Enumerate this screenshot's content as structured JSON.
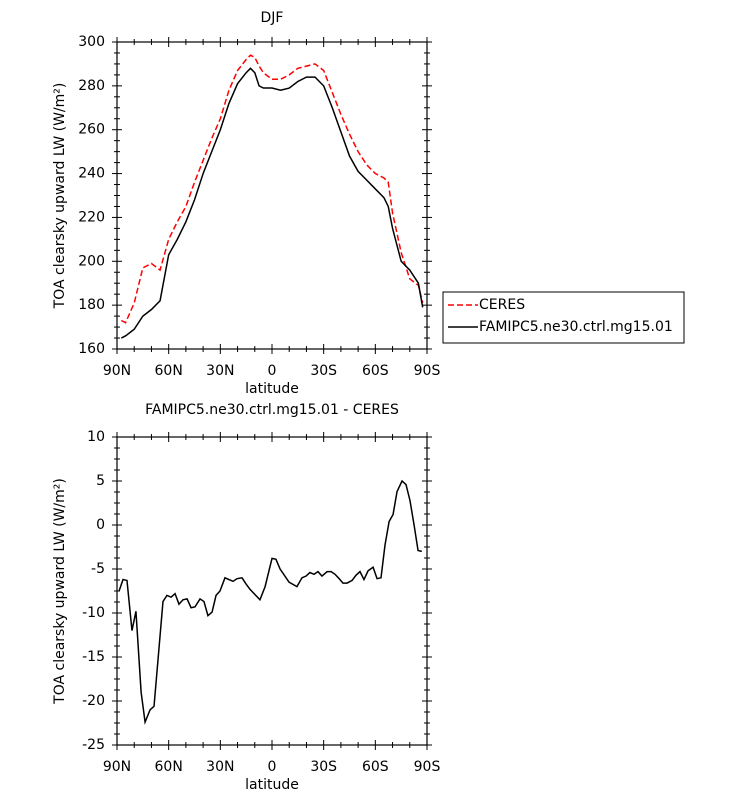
{
  "chart_data": [
    {
      "type": "line",
      "title": "DJF",
      "xlabel": "latitude",
      "ylabel": "TOA clearsky upward LW (W/m²)",
      "x": [
        87.5,
        85,
        80,
        75,
        70,
        65,
        60,
        55,
        50,
        45,
        40,
        35,
        30,
        25,
        20,
        15,
        12.5,
        10,
        7.5,
        5,
        0,
        -5,
        -10,
        -15,
        -20,
        -25,
        -30,
        -35,
        -40,
        -45,
        -50,
        -55,
        -60,
        -65,
        -67.5,
        -70,
        -75,
        -80,
        -85,
        -87.5
      ],
      "series": [
        {
          "name": "CERES",
          "color": "#ff0000",
          "dashed": true,
          "values": [
            173,
            172,
            181,
            197,
            199,
            196,
            210,
            218,
            225,
            236,
            246,
            256,
            265,
            278,
            287,
            292,
            294,
            293,
            289,
            286,
            283,
            283,
            285,
            288,
            289,
            290,
            287,
            277,
            267,
            258,
            250,
            244,
            240,
            238,
            236,
            222,
            204,
            192,
            189,
            181
          ]
        },
        {
          "name": "FAMIPC5.ne30.ctrl.mg15.01",
          "color": "#000000",
          "dashed": false,
          "values": [
            165,
            166,
            169,
            175,
            178,
            182,
            203,
            210,
            218,
            228,
            240,
            250,
            260,
            272,
            281,
            286,
            288,
            286,
            280,
            279,
            279,
            278,
            279,
            282,
            284,
            284,
            280,
            270,
            259,
            248,
            241,
            237,
            233,
            229,
            225,
            215,
            200,
            196,
            190,
            179
          ]
        }
      ],
      "xlim": [
        90,
        -90
      ],
      "xticks": [
        {
          "value": 90,
          "label": "90N"
        },
        {
          "value": 60,
          "label": "60N"
        },
        {
          "value": 30,
          "label": "30N"
        },
        0,
        {
          "value": -30,
          "label": "30S"
        },
        {
          "value": -60,
          "label": "60S"
        },
        {
          "value": -90,
          "label": "90S"
        }
      ],
      "ylim": [
        160,
        300
      ],
      "yticks": [
        160,
        180,
        200,
        220,
        240,
        260,
        280,
        300
      ],
      "legend": "right"
    },
    {
      "type": "line",
      "title": "FAMIPC5.ne30.ctrl.mg15.01 - CERES",
      "xlabel": "latitude",
      "ylabel": "TOA clearsky upward LW (W/m²)",
      "x": [
        88.8,
        86.5,
        84.2,
        81.3,
        79,
        76,
        73.7,
        70.8,
        68.5,
        63.3,
        61,
        58.6,
        56.3,
        54,
        51.7,
        49.3,
        47,
        44.7,
        41.8,
        39.5,
        37.2,
        34.8,
        32.5,
        30.2,
        27.3,
        25,
        22.6,
        20.3,
        17.4,
        15.1,
        12.8,
        10.4,
        7,
        4,
        0,
        -2.3,
        -4.7,
        -9.9,
        -14.5,
        -17.4,
        -19.8,
        -22,
        -24.4,
        -26.7,
        -29,
        -32,
        -34.3,
        -36.6,
        -39,
        -41.2,
        -43.6,
        -46.5,
        -48.8,
        -51.1,
        -53.4,
        -55.8,
        -58.7,
        -61,
        -63.3,
        -65.6,
        -68,
        -70.3,
        -72.6,
        -75.5,
        -77.8,
        -80.1,
        -82.5,
        -84.8,
        -87
      ],
      "series": [
        {
          "color": "#000000",
          "dashed": false,
          "values": [
            -7.5,
            -6.2,
            -6.3,
            -12,
            -9.8,
            -19,
            -22.4,
            -21,
            -20.6,
            -8.7,
            -8,
            -8.2,
            -7.8,
            -9,
            -8.5,
            -8.4,
            -9.4,
            -9.3,
            -8.4,
            -8.7,
            -10.3,
            -9.9,
            -8,
            -7.5,
            -6,
            -6.2,
            -6.4,
            -6.1,
            -6,
            -6.7,
            -7.3,
            -7.8,
            -8.5,
            -7,
            -3.8,
            -3.9,
            -5,
            -6.5,
            -7,
            -6,
            -5.8,
            -5.4,
            -5.6,
            -5.3,
            -5.8,
            -5.3,
            -5.3,
            -5.6,
            -6.1,
            -6.6,
            -6.6,
            -6.3,
            -5.7,
            -5.3,
            -6.2,
            -5.2,
            -4.8,
            -6.1,
            -6,
            -2.3,
            0.4,
            1.2,
            3.8,
            5,
            4.6,
            2.8,
            0,
            -2.9,
            -3
          ]
        }
      ],
      "xlim": [
        90,
        -90
      ],
      "xticks": [
        {
          "value": 90,
          "label": "90N"
        },
        {
          "value": 60,
          "label": "60N"
        },
        {
          "value": 30,
          "label": "30N"
        },
        0,
        {
          "value": -30,
          "label": "30S"
        },
        {
          "value": -60,
          "label": "60S"
        },
        {
          "value": -90,
          "label": "90S"
        }
      ],
      "ylim": [
        -25,
        10
      ],
      "yticks": [
        -25,
        -20,
        -15,
        -10,
        -5,
        0,
        5,
        10
      ]
    }
  ]
}
